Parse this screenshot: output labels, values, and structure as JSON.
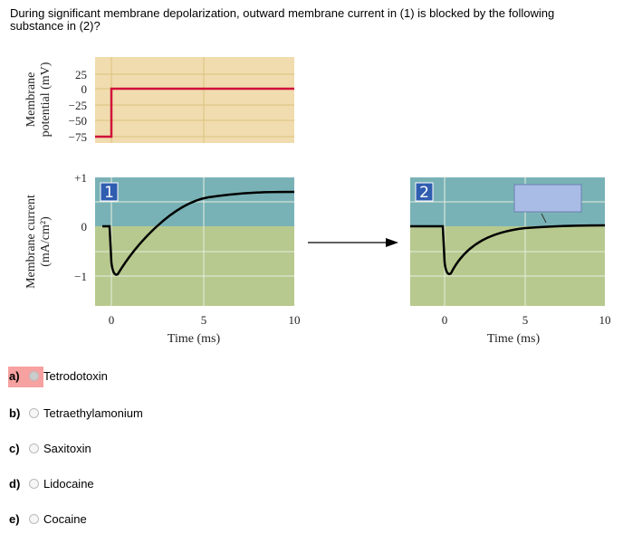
{
  "question": "During significant membrane depolarization, outward membrane current in (1) is blocked by the following substance in (2)?",
  "figure": {
    "top_ylabel_line1": "Membrane",
    "top_ylabel_line2": "potential (mV)",
    "top_yticks": [
      "25",
      "0",
      "−25",
      "−50",
      "−75"
    ],
    "bottom_ylabel_line1": "Membrane current",
    "bottom_ylabel_line2": "(mA/cm²)",
    "bottom_yticks": [
      "+1",
      "0",
      "−1"
    ],
    "xticks": [
      "0",
      "5",
      "10"
    ],
    "xlabel": "Time (ms)",
    "panel1_label": "1",
    "panel2_label": "2",
    "colors": {
      "voltage_bg": "#f0dcae",
      "outward_bg": "#79b2b6",
      "inward_bg": "#b7c98e",
      "voltage_trace": "#d0103a",
      "badge": "#2f5db0",
      "answer_box": "#a9bce6"
    }
  },
  "options": [
    {
      "letter": "a)",
      "label": "Tetrodotoxin",
      "selected_highlight": true
    },
    {
      "letter": "b)",
      "label": "Tetraethylamonium"
    },
    {
      "letter": "c)",
      "label": "Saxitoxin"
    },
    {
      "letter": "d)",
      "label": "Lidocaine"
    },
    {
      "letter": "e)",
      "label": "Cocaine"
    }
  ]
}
